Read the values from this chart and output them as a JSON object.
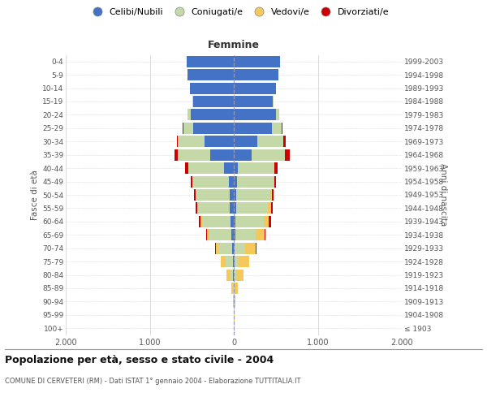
{
  "age_groups": [
    "100+",
    "95-99",
    "90-94",
    "85-89",
    "80-84",
    "75-79",
    "70-74",
    "65-69",
    "60-64",
    "55-59",
    "50-54",
    "45-49",
    "40-44",
    "35-39",
    "30-34",
    "25-29",
    "20-24",
    "15-19",
    "10-14",
    "5-9",
    "0-4"
  ],
  "birth_years": [
    "≤ 1903",
    "1904-1908",
    "1909-1913",
    "1914-1918",
    "1919-1923",
    "1924-1928",
    "1929-1933",
    "1934-1938",
    "1939-1943",
    "1944-1948",
    "1949-1953",
    "1954-1958",
    "1959-1963",
    "1964-1968",
    "1969-1973",
    "1974-1978",
    "1979-1983",
    "1984-1988",
    "1989-1993",
    "1994-1998",
    "1999-2003"
  ],
  "males": {
    "celibi": [
      0,
      0,
      0,
      0,
      5,
      10,
      20,
      30,
      40,
      45,
      50,
      60,
      120,
      280,
      350,
      480,
      510,
      480,
      520,
      550,
      560
    ],
    "coniugati": [
      0,
      2,
      5,
      12,
      45,
      90,
      160,
      260,
      340,
      380,
      400,
      430,
      420,
      380,
      310,
      120,
      40,
      15,
      5,
      2,
      0
    ],
    "vedovi": [
      0,
      2,
      8,
      18,
      35,
      50,
      35,
      25,
      15,
      10,
      8,
      5,
      3,
      2,
      2,
      2,
      0,
      0,
      0,
      0,
      0
    ],
    "divorziati": [
      0,
      0,
      0,
      2,
      2,
      5,
      8,
      15,
      20,
      22,
      20,
      18,
      35,
      40,
      18,
      5,
      2,
      0,
      0,
      0,
      0
    ]
  },
  "females": {
    "nubili": [
      0,
      0,
      0,
      0,
      3,
      5,
      10,
      15,
      20,
      25,
      30,
      40,
      50,
      210,
      280,
      450,
      500,
      460,
      500,
      530,
      550
    ],
    "coniugate": [
      0,
      2,
      5,
      10,
      30,
      55,
      130,
      250,
      340,
      380,
      400,
      430,
      430,
      400,
      310,
      120,
      40,
      15,
      5,
      2,
      0
    ],
    "vedove": [
      0,
      3,
      18,
      40,
      80,
      120,
      120,
      100,
      60,
      35,
      20,
      12,
      5,
      3,
      2,
      2,
      0,
      0,
      0,
      0,
      0
    ],
    "divorziate": [
      0,
      0,
      0,
      2,
      2,
      5,
      8,
      12,
      20,
      22,
      22,
      20,
      35,
      50,
      22,
      5,
      2,
      0,
      0,
      0,
      0
    ]
  },
  "colors": {
    "celibi": "#4472C4",
    "coniugati": "#C5D9A8",
    "vedovi": "#F5C85C",
    "divorziati": "#CC0000"
  },
  "legend_labels": [
    "Celibi/Nubili",
    "Coniugati/e",
    "Vedovi/e",
    "Divorziati/e"
  ],
  "xlim": 2000,
  "title": "Popolazione per età, sesso e stato civile - 2004",
  "subtitle": "COMUNE DI CERVETERI (RM) - Dati ISTAT 1° gennaio 2004 - Elaborazione TUTTITALIA.IT",
  "ylabel_left": "Fasce di età",
  "ylabel_right": "Anni di nascita",
  "xlabel_right": "Femmine",
  "bg_color": "#FFFFFF",
  "grid_color": "#CCCCCC",
  "bar_height": 0.85
}
